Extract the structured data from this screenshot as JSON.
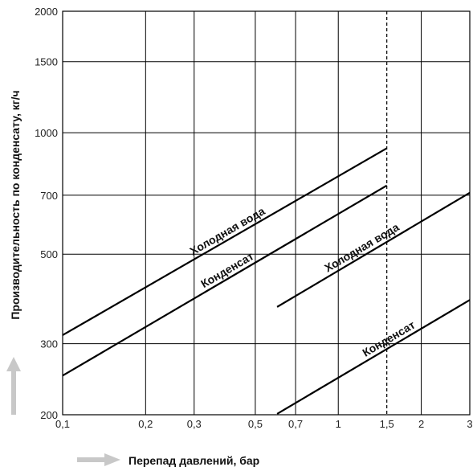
{
  "chart_data": {
    "type": "line",
    "xlabel": "Перепад давлений, бар",
    "ylabel": "Производительность по конденсату, кг/ч",
    "x_scale": "log",
    "y_scale": "log",
    "xlim": [
      0.1,
      3
    ],
    "ylim": [
      200,
      2000
    ],
    "x_ticks": [
      {
        "value": 0.1,
        "label": "0,1"
      },
      {
        "value": 0.2,
        "label": "0,2"
      },
      {
        "value": 0.3,
        "label": "0,3"
      },
      {
        "value": 0.5,
        "label": "0,5"
      },
      {
        "value": 0.7,
        "label": "0,7"
      },
      {
        "value": 1,
        "label": "1"
      },
      {
        "value": 1.5,
        "label": "1,5"
      },
      {
        "value": 2,
        "label": "2"
      },
      {
        "value": 3,
        "label": "3"
      }
    ],
    "y_ticks": [
      {
        "value": 200,
        "label": "200"
      },
      {
        "value": 300,
        "label": "300"
      },
      {
        "value": 500,
        "label": "500"
      },
      {
        "value": 700,
        "label": "700"
      },
      {
        "value": 1000,
        "label": "1000"
      },
      {
        "value": 1500,
        "label": "1500"
      },
      {
        "value": 2000,
        "label": "2000"
      }
    ],
    "grid": true,
    "vertical_limit": {
      "x": 1.5,
      "style": "dashed"
    },
    "series": [
      {
        "name": "Холодная вода",
        "x": [
          0.1,
          1.5
        ],
        "y": [
          315,
          915
        ]
      },
      {
        "name": "Конденсат",
        "x": [
          0.1,
          1.5
        ],
        "y": [
          250,
          740
        ]
      },
      {
        "name": "Холодная вода",
        "x": [
          0.6,
          3
        ],
        "y": [
          370,
          710
        ]
      },
      {
        "name": "Конденсат",
        "x": [
          0.6,
          3
        ],
        "y": [
          201,
          385
        ]
      }
    ]
  }
}
